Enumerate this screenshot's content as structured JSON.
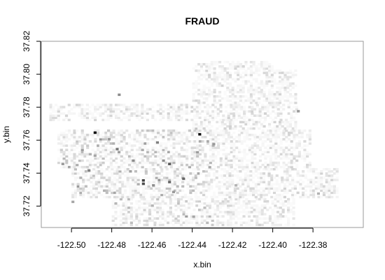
{
  "chart_data": {
    "type": "heatmap",
    "title": "FRAUD",
    "xlabel": "x.bin",
    "ylabel": "y.bin",
    "xlim": [
      -122.515,
      -122.355
    ],
    "ylim": [
      37.707,
      37.82
    ],
    "x_ticks": [
      -122.5,
      -122.48,
      -122.46,
      -122.44,
      -122.42,
      -122.4,
      -122.38
    ],
    "x_tick_labels": [
      "-122.50",
      "-122.48",
      "-122.46",
      "-122.44",
      "-122.42",
      "-122.40",
      "-122.38"
    ],
    "y_ticks": [
      37.72,
      37.74,
      37.76,
      37.78,
      37.8,
      37.82
    ],
    "y_tick_labels": [
      "37.72",
      "37.74",
      "37.76",
      "37.78",
      "37.80",
      "37.82"
    ],
    "grid": false,
    "legend": "none",
    "colormap": [
      "#ffffff",
      "#000000"
    ],
    "bin_size": 0.0013,
    "hotspots": [
      {
        "x": -122.489,
        "y": 37.764,
        "value": 1.0
      },
      {
        "x": -122.437,
        "y": 37.763,
        "value": 0.95
      },
      {
        "x": -122.465,
        "y": 37.735,
        "value": 0.75
      },
      {
        "x": -122.465,
        "y": 37.733,
        "value": 0.7
      },
      {
        "x": -122.452,
        "y": 37.745,
        "value": 0.65
      },
      {
        "x": -122.452,
        "y": 37.734,
        "value": 0.6
      },
      {
        "x": -122.445,
        "y": 37.736,
        "value": 0.6
      },
      {
        "x": -122.478,
        "y": 37.754,
        "value": 0.55
      },
      {
        "x": -122.458,
        "y": 37.758,
        "value": 0.5
      },
      {
        "x": -122.492,
        "y": 37.741,
        "value": 0.5
      },
      {
        "x": -122.455,
        "y": 37.747,
        "value": 0.45
      },
      {
        "x": -122.47,
        "y": 37.747,
        "value": 0.45
      },
      {
        "x": -122.477,
        "y": 37.787,
        "value": 0.45
      },
      {
        "x": -122.46,
        "y": 37.732,
        "value": 0.45
      },
      {
        "x": -122.43,
        "y": 37.757,
        "value": 0.4
      },
      {
        "x": -122.482,
        "y": 37.76,
        "value": 0.4
      },
      {
        "x": -122.505,
        "y": 37.745,
        "value": 0.4
      },
      {
        "x": -122.45,
        "y": 37.728,
        "value": 0.4
      },
      {
        "x": -122.388,
        "y": 37.777,
        "value": 0.4
      },
      {
        "x": -122.489,
        "y": 37.75,
        "value": 0.35
      },
      {
        "x": -122.432,
        "y": 37.743,
        "value": 0.35
      },
      {
        "x": -122.5,
        "y": 37.722,
        "value": 0.35
      },
      {
        "x": -122.44,
        "y": 37.713,
        "value": 0.35
      },
      {
        "x": -122.419,
        "y": 37.732,
        "value": 0.3
      },
      {
        "x": -122.378,
        "y": 37.727,
        "value": 0.3
      }
    ]
  }
}
